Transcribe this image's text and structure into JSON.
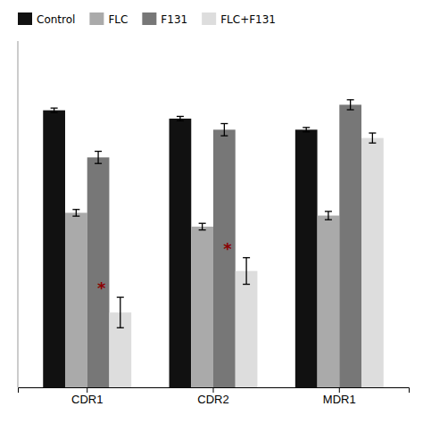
{
  "chart_data": {
    "type": "bar",
    "categories": [
      "CDR1",
      "CDR2",
      "MDR1"
    ],
    "series": [
      {
        "name": "Control",
        "color": "#111111",
        "values": [
          1.0,
          0.97,
          0.93
        ],
        "errors": [
          0.008,
          0.008,
          0.008
        ]
      },
      {
        "name": "FLC",
        "color": "#aaaaaa",
        "values": [
          0.63,
          0.58,
          0.62
        ],
        "errors": [
          0.012,
          0.012,
          0.015
        ]
      },
      {
        "name": "F131",
        "color": "#777777",
        "values": [
          0.83,
          0.93,
          1.02
        ],
        "errors": [
          0.022,
          0.022,
          0.018
        ]
      },
      {
        "name": "FLC+F131",
        "color": "#dddddd",
        "values": [
          0.27,
          0.42,
          0.9
        ],
        "errors": [
          0.055,
          0.048,
          0.018
        ]
      }
    ],
    "annotations": [
      {
        "text": "*",
        "category": "CDR1",
        "series": "FLC+F131",
        "color": "#8b0000"
      },
      {
        "text": "*",
        "category": "CDR2",
        "series": "FLC+F131",
        "color": "#8b0000"
      }
    ],
    "ylim": [
      0,
      1.25
    ],
    "tick_labels": "x",
    "legend": "upper left"
  }
}
